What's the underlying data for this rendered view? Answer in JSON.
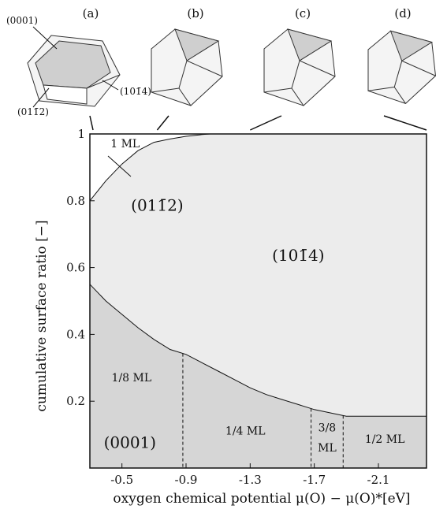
{
  "chart_data": {
    "type": "area",
    "xlabel": "oxygen chemical potential μ(O) − μ(O)*[eV]",
    "ylabel": "cumulative surface ratio [−]",
    "xlim": [
      -0.3,
      -2.4
    ],
    "ylim": [
      0,
      1
    ],
    "xticks": [
      "-0.5",
      "-0.9",
      "-1.3",
      "-1.7",
      "-2.1"
    ],
    "yticks": [
      "0.2",
      "0.4",
      "0.6",
      "0.8",
      "1"
    ],
    "grid": false,
    "regions": [
      {
        "name": "(0001)",
        "fill": "#d6d6d6"
      },
      {
        "name": "(10̄4)",
        "display": "(101̄4)",
        "fill": "#ececec"
      },
      {
        "name": "(011̄2)",
        "display": "(011̄2)",
        "fill": "#ffffff"
      }
    ],
    "series": [
      {
        "name": "(0001) upper boundary",
        "x": [
          -0.3,
          -0.4,
          -0.5,
          -0.6,
          -0.7,
          -0.8,
          -0.9,
          -1.0,
          -1.1,
          -1.2,
          -1.3,
          -1.4,
          -1.5,
          -1.6,
          -1.7,
          -1.8,
          -1.9,
          -2.4
        ],
        "y": [
          0.55,
          0.5,
          0.46,
          0.42,
          0.385,
          0.355,
          0.34,
          0.315,
          0.29,
          0.265,
          0.24,
          0.22,
          0.205,
          0.19,
          0.175,
          0.165,
          0.155,
          0.155
        ]
      },
      {
        "name": "(10̄4) upper boundary",
        "x": [
          -0.3,
          -0.4,
          -0.5,
          -0.6,
          -0.7,
          -0.8,
          -0.9,
          -1.0,
          -1.05,
          -2.4
        ],
        "y": [
          0.8,
          0.86,
          0.91,
          0.95,
          0.975,
          0.985,
          0.993,
          0.998,
          1.0,
          1.0
        ]
      }
    ],
    "coverage_boundaries": [
      -0.88,
      -1.68,
      -1.88
    ],
    "coverage_labels": [
      {
        "text": "1/8 ML",
        "x": -0.56,
        "y": 0.26
      },
      {
        "text": "1/4 ML",
        "x": -1.27,
        "y": 0.1
      },
      {
        "text": "3/8",
        "x": -1.78,
        "y": 0.11
      },
      {
        "text": "ML",
        "x": -1.78,
        "y": 0.05
      },
      {
        "text": "1/2 ML",
        "x": -2.14,
        "y": 0.075
      },
      {
        "text": "1 ML",
        "x": -0.52,
        "y": 0.96
      }
    ],
    "region_labels": [
      {
        "text": "(0001)",
        "x": -0.55,
        "y": 0.06
      },
      {
        "text": "(10̄4)",
        "display": "(101̄4)",
        "x": -1.6,
        "y": 0.62
      },
      {
        "text": "(011̄2)",
        "display": "(011̄2)",
        "x": -0.72,
        "y": 0.77
      }
    ],
    "crystals": [
      {
        "panel": "(a)",
        "x_marker": -0.3,
        "labels": [
          "(0001)",
          "(011̄2)",
          "(101̄4)"
        ]
      },
      {
        "panel": "(b)",
        "x_marker": -0.72,
        "labels": []
      },
      {
        "panel": "(c)",
        "x_marker": -1.3,
        "labels": []
      },
      {
        "panel": "(d)",
        "x_marker": -2.4,
        "labels": []
      }
    ]
  }
}
